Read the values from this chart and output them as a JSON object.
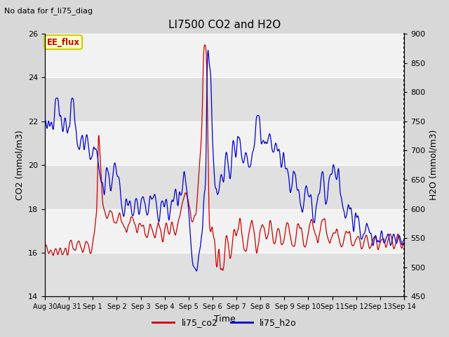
{
  "title": "LI7500 CO2 and H2O",
  "top_left_text": "No data for f_li75_diag",
  "xlabel": "Time",
  "ylabel_left": "CO2 (mmol/m3)",
  "ylabel_right": "H2O (mmol/m3)",
  "ylim_left": [
    14,
    26
  ],
  "ylim_right": [
    450,
    900
  ],
  "yticks_left": [
    14,
    16,
    18,
    20,
    22,
    24,
    26
  ],
  "yticks_right": [
    450,
    500,
    550,
    600,
    650,
    700,
    750,
    800,
    850,
    900
  ],
  "color_co2": "#cc0000",
  "color_h2o": "#0000cc",
  "legend_items": [
    "li75_co2",
    "li75_h2o"
  ],
  "ee_flux_label": "EE_flux",
  "ee_flux_bg": "#ffffcc",
  "ee_flux_border": "#cccc00",
  "ee_flux_text_color": "#cc0000",
  "outer_bg": "#d8d8d8",
  "plot_bg_light": "#f2f2f2",
  "plot_bg_dark": "#e0e0e0",
  "grid_color": "#ffffff",
  "xticklabels": [
    "Aug 30",
    "Aug 31",
    "Sep 1",
    "Sep 2",
    "Sep 3",
    "Sep 4",
    "Sep 5",
    "Sep 6",
    "Sep 7",
    "Sep 8",
    "Sep 9",
    "Sep 10",
    "Sep 11",
    "Sep 12",
    "Sep 13",
    "Sep 14"
  ],
  "num_points": 800
}
